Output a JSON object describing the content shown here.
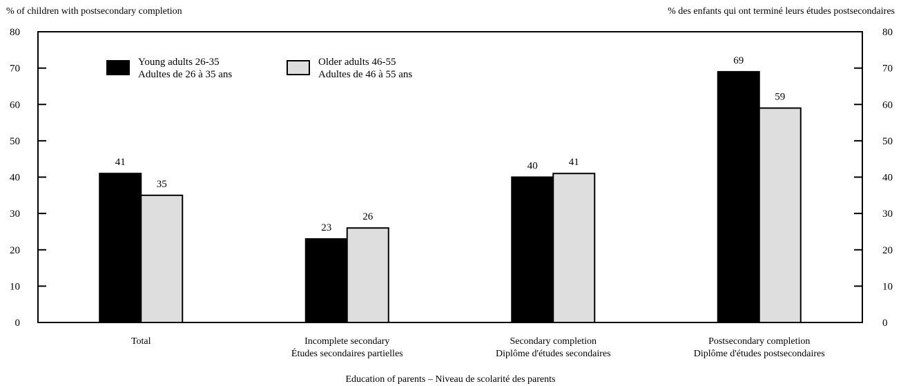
{
  "chart_data": {
    "type": "bar",
    "ylabel_left": "% of children with postsecondary completion",
    "ylabel_right": "% des enfants qui ont terminé leurs études postsecondaires",
    "xlabel": "Education of parents – Niveau de scolarité des parents",
    "ylim": [
      0,
      80
    ],
    "yticks": [
      0,
      10,
      20,
      30,
      40,
      50,
      60,
      70,
      80
    ],
    "grid": false,
    "legend_position": "top-left",
    "categories": [
      [
        "Total"
      ],
      [
        "Incomplete secondary",
        "Études secondaires partielles"
      ],
      [
        "Secondary completion",
        "Diplôme d'études secondaires"
      ],
      [
        "Postsecondary completion",
        "Diplôme d'études postsecondaires"
      ]
    ],
    "series": [
      {
        "name": [
          "Young adults 26-35",
          "Adultes de 26 à 35 ans"
        ],
        "color": "#000000",
        "values": [
          41,
          23,
          40,
          69
        ]
      },
      {
        "name": [
          "Older adults 46-55",
          "Adultes de 46 à 55 ans"
        ],
        "color": "#dedede",
        "values": [
          35,
          26,
          41,
          59
        ]
      }
    ]
  }
}
